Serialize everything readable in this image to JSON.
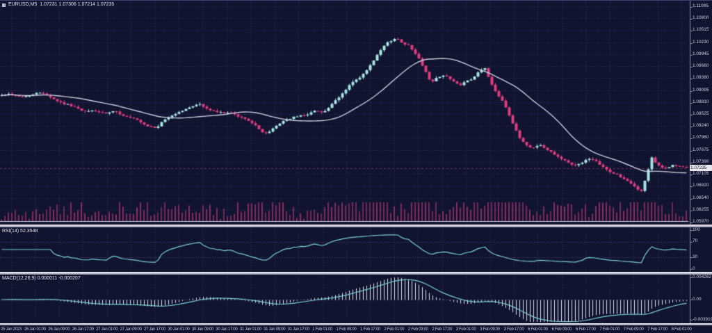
{
  "window": {
    "app": "trading-chart",
    "symbol": "EURUSD",
    "timeframe": "M5"
  },
  "colors": {
    "background": "#11142f",
    "grid": "#2c3160",
    "bull": "#a5e3e0",
    "bear": "#de3d7d",
    "ma_line": "#c9cbdb",
    "volume": "#8c2d62",
    "rsi_line": "#7cd1d8",
    "macd_signal": "#7cd1d8",
    "macd_histogram": "#dfe3ee",
    "axis_text": "#ccd0de",
    "time_text": "#bfc3d4",
    "price_tag_bg": "#e9e9ee",
    "price_tag_text": "#101332",
    "level_line": "#444a7d",
    "axis_line": "#8e93ae",
    "baseline": "#cfd3e0",
    "bid_line": "#cf4b86"
  },
  "chart_data": [
    {
      "type": "candlestick",
      "title": "EURUSD,M5",
      "ohlc_line": "1.07231 1.07306 1.07214 1.07235",
      "open": 1.07231,
      "high": 1.07306,
      "low": 1.07214,
      "close": 1.07235,
      "current_price_label": "1.07235",
      "grid": "dotted",
      "legend_position": "top-left",
      "overlays": [
        "moving-average",
        "volume"
      ],
      "ylim": [
        1.05825,
        1.1118
      ],
      "y_ticks": [
        "1.11085",
        "1.10800",
        "1.10515",
        "1.10230",
        "1.09945",
        "1.09660",
        "1.09380",
        "1.09095",
        "1.08810",
        "1.08525",
        "1.08240",
        "1.07960",
        "1.07675",
        "1.07390",
        "1.07105",
        "1.06820",
        "1.06540",
        "1.06255",
        "1.05970"
      ],
      "x_labels": [
        "25 Jan 2023",
        "26 Jan 01:00",
        "26 Jan 09:00",
        "26 Jan 17:00",
        "27 Jan 01:00",
        "27 Jan 09:00",
        "27 Jan 17:00",
        "30 Jan 01:00",
        "30 Jan 09:00",
        "30 Jan 17:00",
        "31 Jan 01:00",
        "31 Jan 09:00",
        "31 Jan 17:00",
        "1 Feb 01:00",
        "1 Feb 09:00",
        "1 Feb 17:00",
        "2 Feb 01:00",
        "2 Feb 09:00",
        "2 Feb 17:00",
        "3 Feb 01:00",
        "3 Feb 09:00",
        "3 Feb 17:00",
        "6 Feb 01:00",
        "6 Feb 09:00",
        "6 Feb 17:00",
        "7 Feb 01:00",
        "7 Feb 09:00",
        "7 Feb 17:00",
        "8 Feb 01:00"
      ],
      "price_anchors": [
        [
          0.0,
          1.0896
        ],
        [
          0.015,
          1.0901
        ],
        [
          0.03,
          1.0892
        ],
        [
          0.045,
          1.0898
        ],
        [
          0.061,
          1.0905
        ],
        [
          0.076,
          1.089
        ],
        [
          0.091,
          1.0878
        ],
        [
          0.106,
          1.0872
        ],
        [
          0.121,
          1.0858
        ],
        [
          0.136,
          1.0861
        ],
        [
          0.152,
          1.0853
        ],
        [
          0.167,
          1.0859
        ],
        [
          0.182,
          1.0847
        ],
        [
          0.197,
          1.084
        ],
        [
          0.212,
          1.0824
        ],
        [
          0.227,
          1.082
        ],
        [
          0.242,
          1.0843
        ],
        [
          0.258,
          1.0856
        ],
        [
          0.273,
          1.0866
        ],
        [
          0.288,
          1.0878
        ],
        [
          0.303,
          1.0863
        ],
        [
          0.318,
          1.0856
        ],
        [
          0.333,
          1.0856
        ],
        [
          0.348,
          1.0846
        ],
        [
          0.364,
          1.0836
        ],
        [
          0.379,
          1.0812
        ],
        [
          0.389,
          1.0806
        ],
        [
          0.399,
          1.0822
        ],
        [
          0.414,
          1.0839
        ],
        [
          0.429,
          1.0846
        ],
        [
          0.444,
          1.0851
        ],
        [
          0.46,
          1.0861
        ],
        [
          0.47,
          1.0856
        ],
        [
          0.48,
          1.0872
        ],
        [
          0.495,
          1.0896
        ],
        [
          0.51,
          1.0926
        ],
        [
          0.525,
          1.0941
        ],
        [
          0.54,
          1.0972
        ],
        [
          0.556,
          1.1011
        ],
        [
          0.566,
          1.1026
        ],
        [
          0.576,
          1.1032
        ],
        [
          0.586,
          1.1021
        ],
        [
          0.596,
          1.1013
        ],
        [
          0.606,
          1.0991
        ],
        [
          0.616,
          1.0962
        ],
        [
          0.626,
          1.0926
        ],
        [
          0.636,
          1.0941
        ],
        [
          0.646,
          1.0946
        ],
        [
          0.657,
          1.0931
        ],
        [
          0.667,
          1.0921
        ],
        [
          0.677,
          1.0929
        ],
        [
          0.687,
          1.0936
        ],
        [
          0.697,
          1.0956
        ],
        [
          0.704,
          1.0963
        ],
        [
          0.712,
          1.0931
        ],
        [
          0.722,
          1.0901
        ],
        [
          0.732,
          1.0881
        ],
        [
          0.742,
          1.0841
        ],
        [
          0.753,
          1.0801
        ],
        [
          0.763,
          1.0781
        ],
        [
          0.773,
          1.0771
        ],
        [
          0.783,
          1.0781
        ],
        [
          0.793,
          1.0769
        ],
        [
          0.803,
          1.0761
        ],
        [
          0.813,
          1.0749
        ],
        [
          0.823,
          1.0741
        ],
        [
          0.833,
          1.0729
        ],
        [
          0.843,
          1.0736
        ],
        [
          0.854,
          1.0746
        ],
        [
          0.864,
          1.0741
        ],
        [
          0.874,
          1.0731
        ],
        [
          0.884,
          1.0716
        ],
        [
          0.894,
          1.0711
        ],
        [
          0.904,
          1.0701
        ],
        [
          0.914,
          1.069
        ],
        [
          0.924,
          1.0678
        ],
        [
          0.931,
          1.0667
        ],
        [
          0.939,
          1.0702
        ],
        [
          0.946,
          1.0752
        ],
        [
          0.955,
          1.0731
        ],
        [
          0.965,
          1.0722
        ],
        [
          0.975,
          1.0731
        ],
        [
          0.985,
          1.0729
        ],
        [
          0.995,
          1.0725
        ],
        [
          1.0,
          1.0724
        ]
      ],
      "candle_count": 198,
      "ma_period": 24
    },
    {
      "type": "line",
      "name": "RSI",
      "label": "RSI(14) 52.3548",
      "period": 14,
      "value": 52.3548,
      "range": [
        0,
        100
      ],
      "levels": [
        70,
        30
      ],
      "y_ticks": [
        "100",
        "70",
        "30",
        "0"
      ],
      "y_tick_values": [
        100,
        70,
        30,
        0
      ]
    },
    {
      "type": "macd",
      "name": "MACD",
      "label": "MACD(12,26,9) 0.000011 -0.000207",
      "params": [
        12,
        26,
        9
      ],
      "macd_value": 1.1e-05,
      "signal_value": -0.000207,
      "range": [
        -0.003918,
        0.004262
      ],
      "y_ticks": [
        "0.004262",
        "0.00",
        "-0.003918"
      ],
      "y_tick_values": [
        0.004262,
        0,
        -0.003918
      ]
    }
  ]
}
